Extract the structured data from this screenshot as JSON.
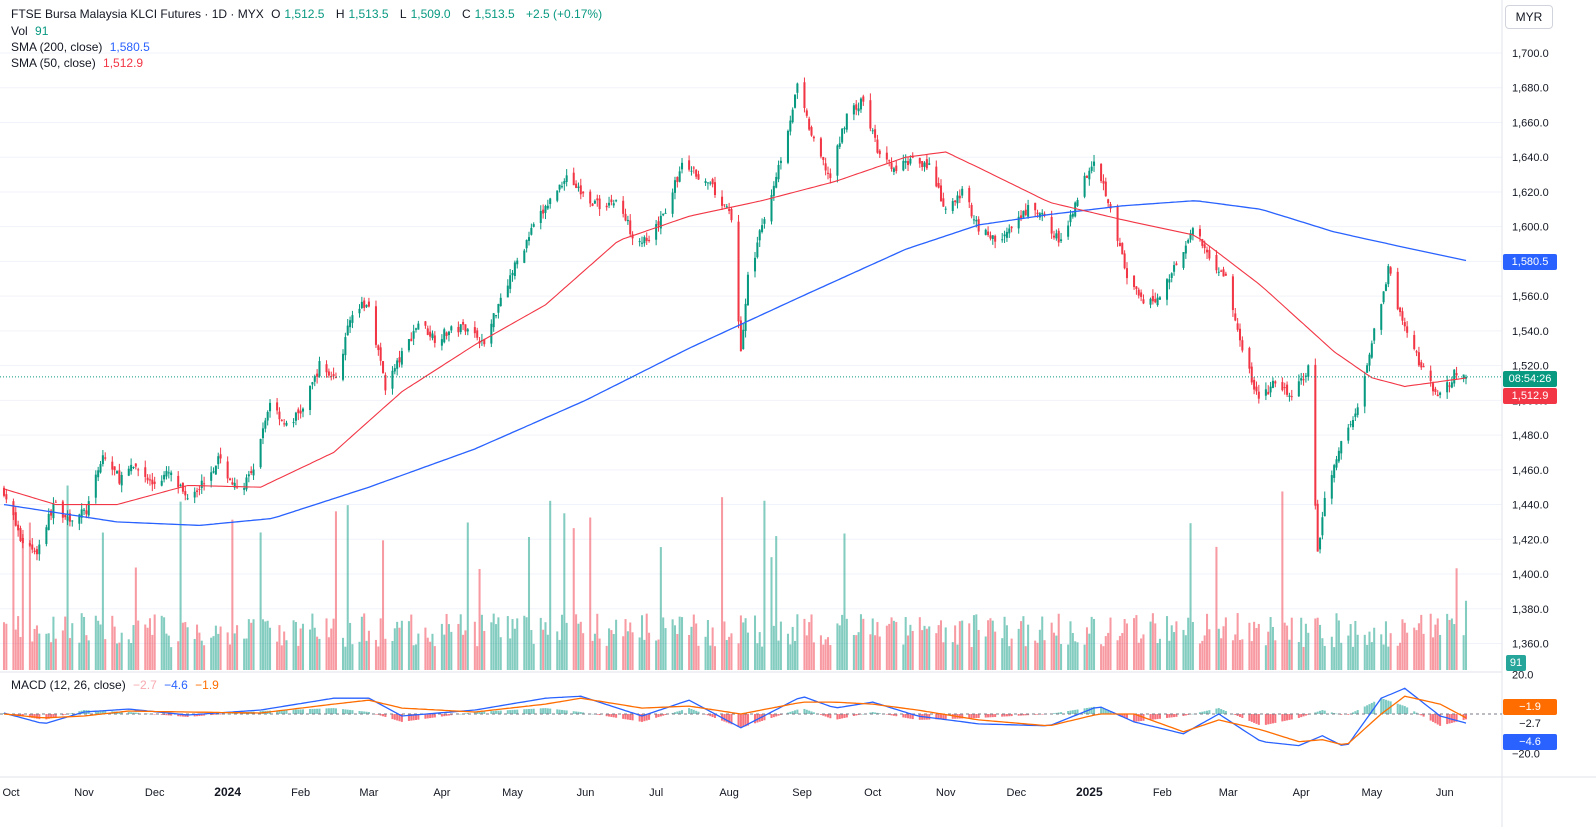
{
  "header": {
    "symbol": "FTSE Bursa Malaysia KLCI Futures · 1D · MYX",
    "open_label": "O",
    "open": "1,512.5",
    "high_label": "H",
    "high": "1,513.5",
    "low_label": "L",
    "low": "1,509.0",
    "close_label": "C",
    "close": "1,513.5",
    "change": "+2.5 (+0.17%)"
  },
  "vol_legend": {
    "label": "Vol",
    "value": "91"
  },
  "sma200_legend": {
    "label": "SMA (200, close)",
    "value": "1,580.5"
  },
  "sma50_legend": {
    "label": "SMA (50, close)",
    "value": "1,512.9"
  },
  "macd_legend": {
    "label": "MACD (12, 26, close)",
    "hist": "−2.7",
    "macd": "−4.6",
    "signal": "−1.9"
  },
  "currency": "MYR",
  "price_tags": {
    "sma200": "1,580.5",
    "countdown": "08:54:26",
    "sma50": "1,512.9",
    "volume": "91",
    "macd_signal": "−1.9",
    "macd_hist": "−2.7",
    "macd_line": "−4.6"
  },
  "colors": {
    "up": "#089981",
    "down": "#f23645",
    "sma200": "#2962ff",
    "sma50": "#f23645",
    "macd": "#2962ff",
    "signal": "#ff6d00"
  },
  "chart_data": {
    "type": "candlestick",
    "price_axis_ticks": [
      "1,700.0",
      "1,680.0",
      "1,660.0",
      "1,640.0",
      "1,620.0",
      "1,600.0",
      "1,580.0",
      "1,560.0",
      "1,540.0",
      "1,520.0",
      "1,500.0",
      "1,480.0",
      "1,460.0",
      "1,440.0",
      "1,420.0",
      "1,400.0",
      "1,380.0",
      "1,360.0"
    ],
    "macd_axis_ticks": [
      "20.0",
      "−20.0"
    ],
    "time_axis_ticks": [
      "Oct",
      "Nov",
      "Dec",
      "2024",
      "Feb",
      "Mar",
      "Apr",
      "May",
      "Jun",
      "Jul",
      "Aug",
      "Sep",
      "Oct",
      "Nov",
      "Dec",
      "2025",
      "Feb",
      "Mar",
      "Apr",
      "May",
      "Jun"
    ],
    "price_range": [
      1355,
      1710
    ],
    "macd_range": [
      -25,
      22
    ],
    "close_anchors": [
      {
        "date": "2023-09-28",
        "close": 1448
      },
      {
        "date": "2023-10-05",
        "close": 1420
      },
      {
        "date": "2023-10-12",
        "close": 1413
      },
      {
        "date": "2023-10-19",
        "close": 1440
      },
      {
        "date": "2023-10-26",
        "close": 1432
      },
      {
        "date": "2023-11-02",
        "close": 1436
      },
      {
        "date": "2023-11-09",
        "close": 1468
      },
      {
        "date": "2023-11-16",
        "close": 1455
      },
      {
        "date": "2023-11-23",
        "close": 1462
      },
      {
        "date": "2023-11-30",
        "close": 1452
      },
      {
        "date": "2023-12-07",
        "close": 1458
      },
      {
        "date": "2023-12-14",
        "close": 1445
      },
      {
        "date": "2023-12-21",
        "close": 1452
      },
      {
        "date": "2023-12-28",
        "close": 1466
      },
      {
        "date": "2024-01-05",
        "close": 1448
      },
      {
        "date": "2024-01-12",
        "close": 1458
      },
      {
        "date": "2024-01-19",
        "close": 1500
      },
      {
        "date": "2024-01-26",
        "close": 1485
      },
      {
        "date": "2024-02-02",
        "close": 1495
      },
      {
        "date": "2024-02-09",
        "close": 1520
      },
      {
        "date": "2024-02-16",
        "close": 1512
      },
      {
        "date": "2024-02-23",
        "close": 1552
      },
      {
        "date": "2024-03-01",
        "close": 1555
      },
      {
        "date": "2024-03-08",
        "close": 1508
      },
      {
        "date": "2024-03-15",
        "close": 1526
      },
      {
        "date": "2024-03-22",
        "close": 1545
      },
      {
        "date": "2024-03-29",
        "close": 1536
      },
      {
        "date": "2024-04-05",
        "close": 1540
      },
      {
        "date": "2024-04-12",
        "close": 1543
      },
      {
        "date": "2024-04-19",
        "close": 1532
      },
      {
        "date": "2024-04-26",
        "close": 1560
      },
      {
        "date": "2024-05-03",
        "close": 1580
      },
      {
        "date": "2024-05-10",
        "close": 1600
      },
      {
        "date": "2024-05-17",
        "close": 1615
      },
      {
        "date": "2024-05-24",
        "close": 1630
      },
      {
        "date": "2024-05-31",
        "close": 1618
      },
      {
        "date": "2024-06-07",
        "close": 1612
      },
      {
        "date": "2024-06-14",
        "close": 1615
      },
      {
        "date": "2024-06-21",
        "close": 1596
      },
      {
        "date": "2024-06-28",
        "close": 1590
      },
      {
        "date": "2024-07-05",
        "close": 1610
      },
      {
        "date": "2024-07-12",
        "close": 1635
      },
      {
        "date": "2024-07-19",
        "close": 1630
      },
      {
        "date": "2024-07-26",
        "close": 1620
      },
      {
        "date": "2024-08-02",
        "close": 1605
      },
      {
        "date": "2024-08-06",
        "close": 1528
      },
      {
        "date": "2024-08-09",
        "close": 1570
      },
      {
        "date": "2024-08-16",
        "close": 1605
      },
      {
        "date": "2024-08-23",
        "close": 1640
      },
      {
        "date": "2024-08-30",
        "close": 1680
      },
      {
        "date": "2024-09-06",
        "close": 1648
      },
      {
        "date": "2024-09-13",
        "close": 1628
      },
      {
        "date": "2024-09-20",
        "close": 1665
      },
      {
        "date": "2024-09-27",
        "close": 1672
      },
      {
        "date": "2024-10-04",
        "close": 1640
      },
      {
        "date": "2024-10-11",
        "close": 1632
      },
      {
        "date": "2024-10-18",
        "close": 1640
      },
      {
        "date": "2024-10-25",
        "close": 1635
      },
      {
        "date": "2024-11-01",
        "close": 1608
      },
      {
        "date": "2024-11-08",
        "close": 1620
      },
      {
        "date": "2024-11-15",
        "close": 1600
      },
      {
        "date": "2024-11-22",
        "close": 1592
      },
      {
        "date": "2024-11-29",
        "close": 1598
      },
      {
        "date": "2024-12-06",
        "close": 1610
      },
      {
        "date": "2024-12-13",
        "close": 1605
      },
      {
        "date": "2024-12-20",
        "close": 1590
      },
      {
        "date": "2024-12-27",
        "close": 1618
      },
      {
        "date": "2025-01-03",
        "close": 1640
      },
      {
        "date": "2025-01-10",
        "close": 1612
      },
      {
        "date": "2025-01-17",
        "close": 1570
      },
      {
        "date": "2025-01-24",
        "close": 1555
      },
      {
        "date": "2025-01-31",
        "close": 1560
      },
      {
        "date": "2025-02-07",
        "close": 1580
      },
      {
        "date": "2025-02-14",
        "close": 1598
      },
      {
        "date": "2025-02-21",
        "close": 1583
      },
      {
        "date": "2025-02-28",
        "close": 1570
      },
      {
        "date": "2025-03-07",
        "close": 1528
      },
      {
        "date": "2025-03-14",
        "close": 1500
      },
      {
        "date": "2025-03-21",
        "close": 1510
      },
      {
        "date": "2025-03-28",
        "close": 1502
      },
      {
        "date": "2025-04-04",
        "close": 1518
      },
      {
        "date": "2025-04-08",
        "close": 1410
      },
      {
        "date": "2025-04-11",
        "close": 1445
      },
      {
        "date": "2025-04-18",
        "close": 1475
      },
      {
        "date": "2025-04-25",
        "close": 1495
      },
      {
        "date": "2025-05-02",
        "close": 1540
      },
      {
        "date": "2025-05-08",
        "close": 1575
      },
      {
        "date": "2025-05-15",
        "close": 1540
      },
      {
        "date": "2025-05-22",
        "close": 1520
      },
      {
        "date": "2025-05-29",
        "close": 1500
      },
      {
        "date": "2025-06-05",
        "close": 1515
      },
      {
        "date": "2025-06-10",
        "close": 1513.5
      }
    ],
    "sma200_anchors": [
      {
        "date": "2023-09-28",
        "value": 1440
      },
      {
        "date": "2023-11-15",
        "value": 1430
      },
      {
        "date": "2023-12-20",
        "value": 1428
      },
      {
        "date": "2024-01-20",
        "value": 1432
      },
      {
        "date": "2024-03-01",
        "value": 1450
      },
      {
        "date": "2024-04-15",
        "value": 1472
      },
      {
        "date": "2024-06-01",
        "value": 1500
      },
      {
        "date": "2024-07-15",
        "value": 1530
      },
      {
        "date": "2024-09-01",
        "value": 1560
      },
      {
        "date": "2024-10-15",
        "value": 1587
      },
      {
        "date": "2024-11-15",
        "value": 1601
      },
      {
        "date": "2024-12-15",
        "value": 1607
      },
      {
        "date": "2025-01-15",
        "value": 1612
      },
      {
        "date": "2025-02-15",
        "value": 1615
      },
      {
        "date": "2025-03-15",
        "value": 1610
      },
      {
        "date": "2025-04-15",
        "value": 1597
      },
      {
        "date": "2025-05-15",
        "value": 1588
      },
      {
        "date": "2025-06-10",
        "value": 1580.5
      }
    ],
    "sma50_anchors": [
      {
        "date": "2023-09-28",
        "value": 1449
      },
      {
        "date": "2023-10-20",
        "value": 1440
      },
      {
        "date": "2023-11-15",
        "value": 1440
      },
      {
        "date": "2023-12-15",
        "value": 1451
      },
      {
        "date": "2024-01-15",
        "value": 1450
      },
      {
        "date": "2024-02-15",
        "value": 1470
      },
      {
        "date": "2024-03-15",
        "value": 1505
      },
      {
        "date": "2024-04-15",
        "value": 1532
      },
      {
        "date": "2024-05-15",
        "value": 1555
      },
      {
        "date": "2024-06-15",
        "value": 1592
      },
      {
        "date": "2024-07-15",
        "value": 1606
      },
      {
        "date": "2024-08-15",
        "value": 1615
      },
      {
        "date": "2024-09-15",
        "value": 1626
      },
      {
        "date": "2024-10-15",
        "value": 1640
      },
      {
        "date": "2024-11-01",
        "value": 1643
      },
      {
        "date": "2024-11-15",
        "value": 1634
      },
      {
        "date": "2024-12-15",
        "value": 1614
      },
      {
        "date": "2025-01-15",
        "value": 1604
      },
      {
        "date": "2025-02-15",
        "value": 1595
      },
      {
        "date": "2025-03-15",
        "value": 1566
      },
      {
        "date": "2025-04-15",
        "value": 1528
      },
      {
        "date": "2025-05-01",
        "value": 1513
      },
      {
        "date": "2025-05-15",
        "value": 1508
      },
      {
        "date": "2025-06-10",
        "value": 1512.9
      }
    ],
    "macd_anchors": [
      {
        "date": "2023-09-28",
        "macd": 0.5,
        "signal": 0
      },
      {
        "date": "2023-10-15",
        "macd": -5,
        "signal": -2
      },
      {
        "date": "2023-11-01",
        "macd": 1,
        "signal": -1
      },
      {
        "date": "2023-11-20",
        "macd": 2.5,
        "signal": 1.5
      },
      {
        "date": "2023-12-15",
        "macd": -0.5,
        "signal": 1
      },
      {
        "date": "2024-01-15",
        "macd": 2,
        "signal": 0.5
      },
      {
        "date": "2024-02-15",
        "macd": 8,
        "signal": 5
      },
      {
        "date": "2024-03-01",
        "macd": 8,
        "signal": 7
      },
      {
        "date": "2024-03-15",
        "macd": -1,
        "signal": 3
      },
      {
        "date": "2024-04-15",
        "macd": 2,
        "signal": 1
      },
      {
        "date": "2024-05-15",
        "macd": 8,
        "signal": 5
      },
      {
        "date": "2024-05-30",
        "macd": 9,
        "signal": 8
      },
      {
        "date": "2024-06-25",
        "macd": -1,
        "signal": 3
      },
      {
        "date": "2024-07-15",
        "macd": 7,
        "signal": 4
      },
      {
        "date": "2024-08-06",
        "macd": -7,
        "signal": 0
      },
      {
        "date": "2024-09-01",
        "macd": 9,
        "signal": 6
      },
      {
        "date": "2024-09-15",
        "macd": 3,
        "signal": 6
      },
      {
        "date": "2024-10-01",
        "macd": 6,
        "signal": 5
      },
      {
        "date": "2024-10-20",
        "macd": -1,
        "signal": 2
      },
      {
        "date": "2024-11-15",
        "macd": -5,
        "signal": -3
      },
      {
        "date": "2024-12-15",
        "macd": -6,
        "signal": -6
      },
      {
        "date": "2025-01-05",
        "macd": 4,
        "signal": 0
      },
      {
        "date": "2025-01-20",
        "macd": -4,
        "signal": 0
      },
      {
        "date": "2025-02-10",
        "macd": -10,
        "signal": -9
      },
      {
        "date": "2025-02-25",
        "macd": 0,
        "signal": -3
      },
      {
        "date": "2025-03-15",
        "macd": -14,
        "signal": -8
      },
      {
        "date": "2025-03-31",
        "macd": -16,
        "signal": -14
      },
      {
        "date": "2025-04-10",
        "macd": -11,
        "signal": -13
      },
      {
        "date": "2025-04-20",
        "macd": -17,
        "signal": -16
      },
      {
        "date": "2025-05-05",
        "macd": 8,
        "signal": 0
      },
      {
        "date": "2025-05-15",
        "macd": 13,
        "signal": 9
      },
      {
        "date": "2025-05-30",
        "macd": -1,
        "signal": 5
      },
      {
        "date": "2025-06-10",
        "macd": -4.6,
        "signal": -1.9
      }
    ],
    "last_volume": 91,
    "volume_range_max": 230
  }
}
